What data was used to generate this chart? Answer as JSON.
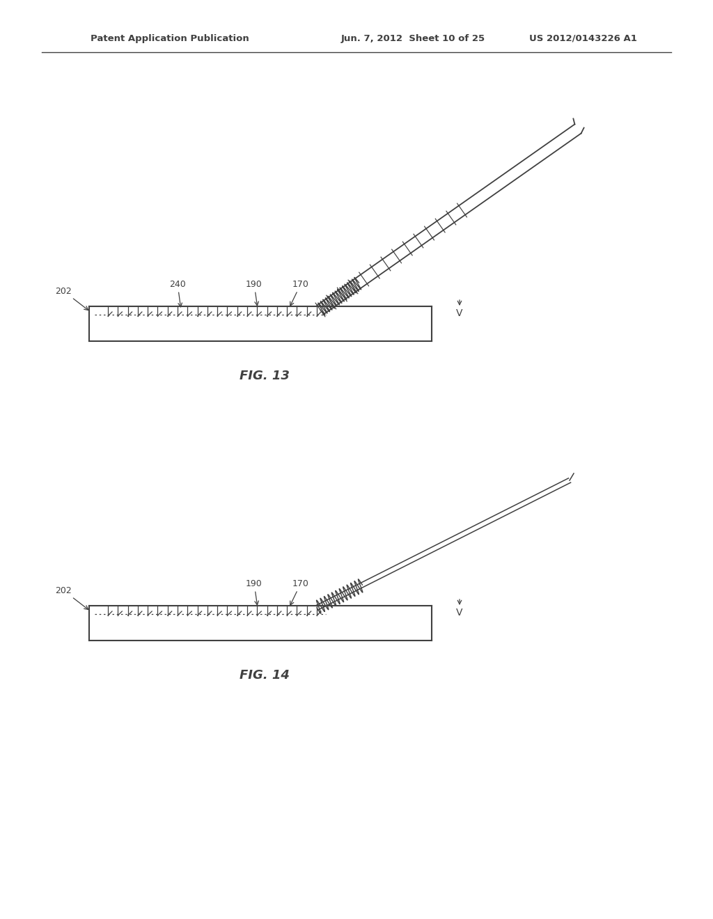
{
  "title_header_left": "Patent Application Publication",
  "title_header_center": "Jun. 7, 2012  Sheet 10 of 25",
  "title_header_right": "US 2012/0143226 A1",
  "fig13_label": "FIG. 13",
  "fig14_label": "FIG. 14",
  "bg_color": "#ffffff",
  "line_color": "#404040",
  "label_color": "#404040"
}
